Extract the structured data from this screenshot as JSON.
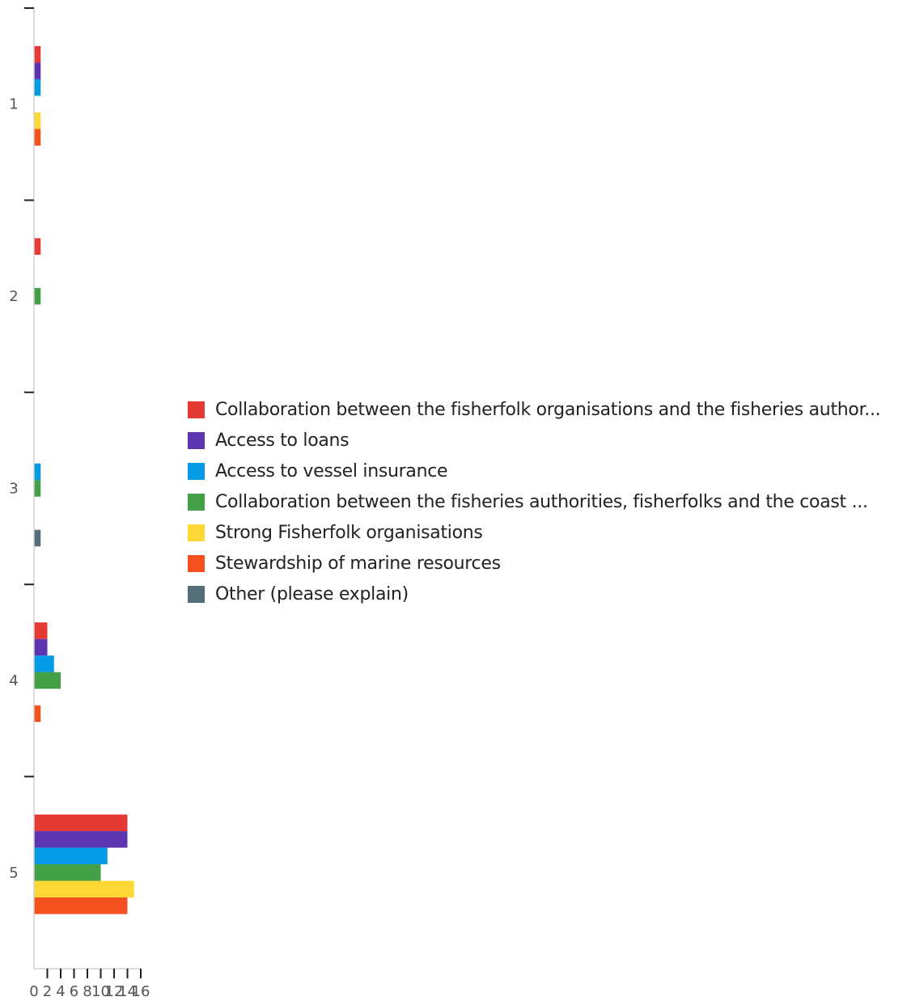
{
  "chart_data": {
    "type": "bar",
    "orientation": "horizontal",
    "categories": [
      "1",
      "2",
      "3",
      "4",
      "5"
    ],
    "x_ticks": [
      "0",
      "2",
      "4",
      "6",
      "8",
      "10",
      "12",
      "14",
      "16"
    ],
    "xlim": [
      0,
      16
    ],
    "grid": false,
    "legend_position": "right",
    "series": [
      {
        "name": "Collaboration between the fisherfolk organisations and the fisheries author...",
        "color": "#e53935",
        "values": [
          1,
          1,
          0,
          2,
          14
        ]
      },
      {
        "name": "Access to loans",
        "color": "#5e35b1",
        "values": [
          1,
          0,
          0,
          2,
          14
        ]
      },
      {
        "name": "Access to vessel insurance",
        "color": "#039be5",
        "values": [
          1,
          0,
          1,
          3,
          11
        ]
      },
      {
        "name": "Collaboration between the fisheries authorities, fisherfolks and the coast ...",
        "color": "#43a047",
        "values": [
          0,
          1,
          1,
          4,
          10
        ]
      },
      {
        "name": "Strong Fisherfolk organisations",
        "color": "#fdd835",
        "values": [
          1,
          0,
          0,
          0,
          15
        ]
      },
      {
        "name": "Stewardship of marine resources",
        "color": "#f4511e",
        "values": [
          1,
          0,
          0,
          1,
          14
        ]
      },
      {
        "name": "Other (please explain)",
        "color": "#546e7a",
        "values": [
          0,
          0,
          1,
          0,
          0
        ]
      }
    ]
  }
}
